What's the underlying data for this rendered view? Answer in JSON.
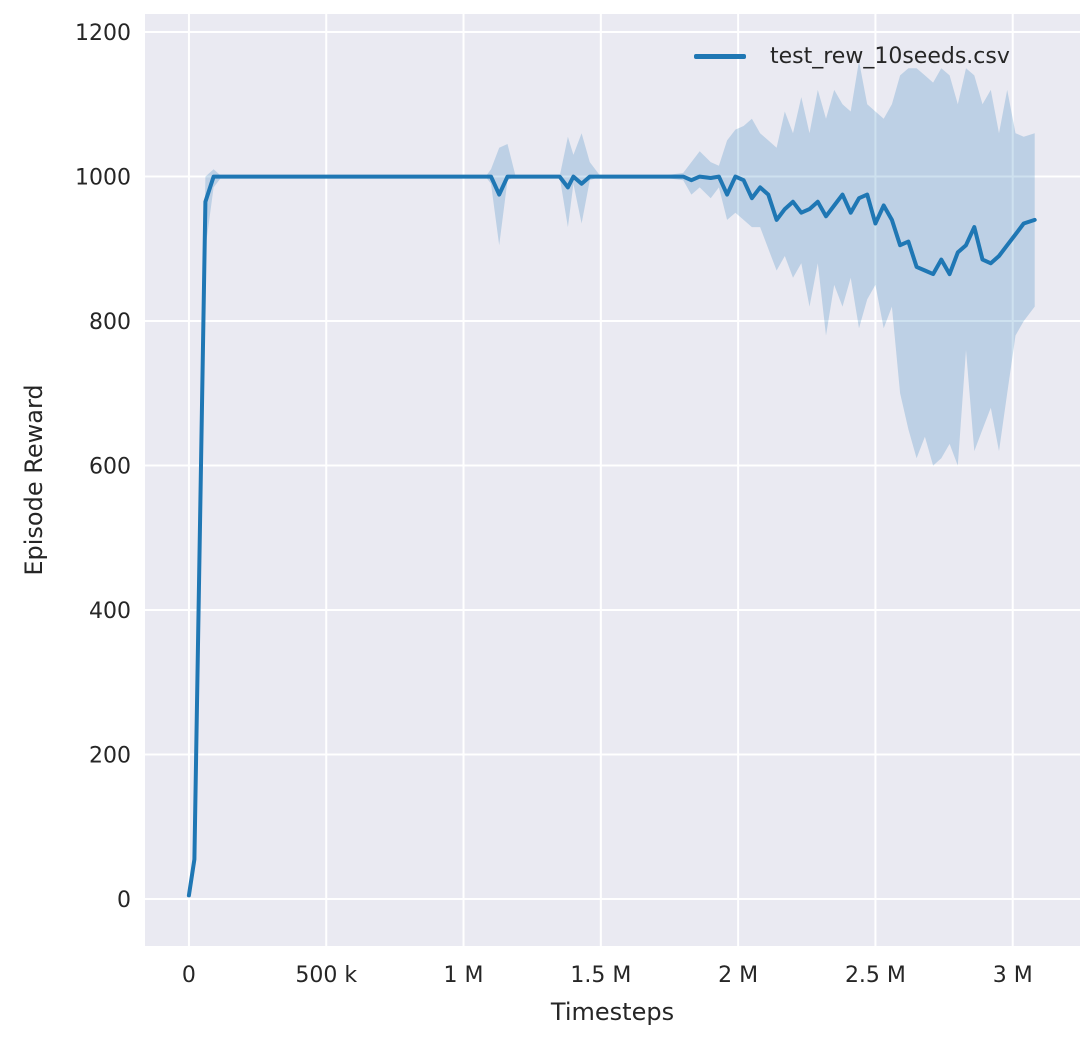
{
  "chart_data": {
    "type": "line",
    "title": "",
    "xlabel": "Timesteps",
    "ylabel": "Episode Reward",
    "legend": {
      "position": "upper right",
      "entries": [
        "test_rew_10seeds.csv"
      ]
    },
    "xlim": [
      -160000,
      3245000
    ],
    "ylim": [
      -65,
      1225
    ],
    "grid": true,
    "x_ticks": [
      {
        "v": 0,
        "label": "0"
      },
      {
        "v": 500000,
        "label": "500 k"
      },
      {
        "v": 1000000,
        "label": "1 M"
      },
      {
        "v": 1500000,
        "label": "1.5 M"
      },
      {
        "v": 2000000,
        "label": "2 M"
      },
      {
        "v": 2500000,
        "label": "2.5 M"
      },
      {
        "v": 3000000,
        "label": "3 M"
      }
    ],
    "y_ticks": [
      {
        "v": 0,
        "label": "0"
      },
      {
        "v": 200,
        "label": "200"
      },
      {
        "v": 400,
        "label": "400"
      },
      {
        "v": 600,
        "label": "600"
      },
      {
        "v": 800,
        "label": "800"
      },
      {
        "v": 1000,
        "label": "1000"
      },
      {
        "v": 1200,
        "label": "1200"
      }
    ],
    "colors": {
      "line": "#1f77b4",
      "band": "#1f77b4",
      "band_opacity": 0.22,
      "plot_bg": "#eaeaf2",
      "grid": "#ffffff",
      "text": "#262626",
      "figure_bg": "#ffffff"
    },
    "series": [
      {
        "name": "test_rew_10seeds.csv",
        "x": [
          0,
          20000,
          60000,
          90000,
          120000,
          200000,
          400000,
          600000,
          800000,
          1000000,
          1080000,
          1100000,
          1130000,
          1160000,
          1190000,
          1250000,
          1350000,
          1380000,
          1400000,
          1430000,
          1460000,
          1500000,
          1600000,
          1700000,
          1800000,
          1830000,
          1860000,
          1900000,
          1930000,
          1960000,
          1990000,
          2020000,
          2050000,
          2080000,
          2110000,
          2140000,
          2170000,
          2200000,
          2230000,
          2260000,
          2290000,
          2320000,
          2350000,
          2380000,
          2410000,
          2440000,
          2470000,
          2500000,
          2530000,
          2560000,
          2590000,
          2620000,
          2650000,
          2680000,
          2710000,
          2740000,
          2770000,
          2800000,
          2830000,
          2860000,
          2890000,
          2920000,
          2950000,
          2980000,
          3010000,
          3040000,
          3080000
        ],
        "mean": [
          5,
          55,
          965,
          1000,
          1000,
          1000,
          1000,
          1000,
          1000,
          1000,
          1000,
          1000,
          975,
          1000,
          1000,
          1000,
          1000,
          985,
          1000,
          990,
          1000,
          1000,
          1000,
          1000,
          1000,
          995,
          1000,
          998,
          1000,
          975,
          1000,
          995,
          970,
          985,
          975,
          940,
          955,
          965,
          950,
          955,
          965,
          945,
          960,
          975,
          950,
          970,
          975,
          935,
          960,
          940,
          905,
          910,
          875,
          870,
          865,
          885,
          865,
          895,
          905,
          930,
          885,
          880,
          890,
          905,
          920,
          935,
          940
        ],
        "low": [
          3,
          45,
          900,
          985,
          1000,
          1000,
          1000,
          1000,
          1000,
          1000,
          1000,
          990,
          905,
          995,
          1000,
          1000,
          1000,
          930,
          990,
          935,
          995,
          1000,
          1000,
          1000,
          995,
          975,
          985,
          970,
          985,
          940,
          950,
          940,
          930,
          930,
          900,
          870,
          890,
          860,
          880,
          820,
          880,
          780,
          850,
          820,
          860,
          790,
          830,
          850,
          790,
          820,
          700,
          650,
          610,
          640,
          600,
          610,
          630,
          600,
          760,
          620,
          650,
          680,
          620,
          700,
          780,
          800,
          820
        ],
        "high": [
          8,
          70,
          1000,
          1010,
          1000,
          1000,
          1000,
          1000,
          1000,
          1000,
          1000,
          1010,
          1040,
          1045,
          1000,
          1000,
          1000,
          1055,
          1030,
          1060,
          1020,
          1000,
          1000,
          1000,
          1005,
          1020,
          1035,
          1020,
          1015,
          1050,
          1065,
          1070,
          1080,
          1060,
          1050,
          1040,
          1090,
          1060,
          1110,
          1060,
          1120,
          1080,
          1120,
          1100,
          1090,
          1160,
          1100,
          1090,
          1080,
          1100,
          1140,
          1150,
          1150,
          1140,
          1130,
          1150,
          1140,
          1100,
          1150,
          1140,
          1100,
          1120,
          1060,
          1120,
          1060,
          1055,
          1060
        ]
      }
    ]
  }
}
